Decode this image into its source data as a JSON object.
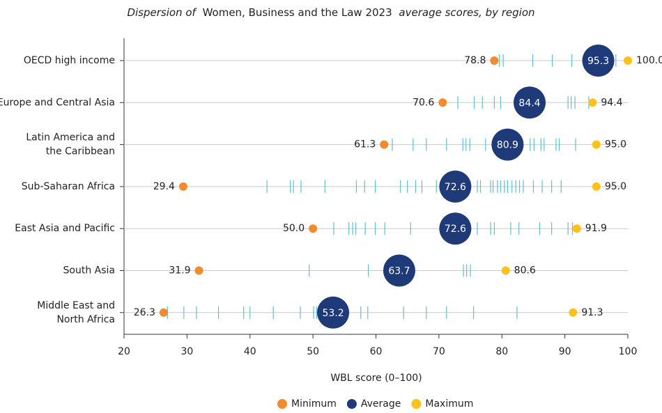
{
  "chart_data": {
    "type": "dot",
    "title": [
      "Dispersion of",
      "Women, Business and the Law 2023",
      "average scores, by region"
    ],
    "x_label": "WBL score (0–100)",
    "categories": [
      [
        "OECD high income"
      ],
      [
        "Europe and Central Asia"
      ],
      [
        "Latin America and",
        "the Caribbean"
      ],
      [
        "Sub-Saharan Africa"
      ],
      [
        "East Asia and Pacific"
      ],
      [
        "South Asia"
      ],
      [
        "Middle East and",
        "North Africa"
      ]
    ],
    "series": [
      {
        "name": "Minimum",
        "color": "#f28a2e",
        "values": [
          78.8,
          70.6,
          61.3,
          29.4,
          50.0,
          31.9,
          26.3
        ],
        "value_labels": [
          "78.8",
          "70.6",
          "61.3",
          "29.4",
          "50.0",
          "31.9",
          "26.3"
        ]
      },
      {
        "name": "Average",
        "color": "#1f3a78",
        "values": [
          95.3,
          84.4,
          80.9,
          72.6,
          72.6,
          63.7,
          53.2
        ],
        "value_labels": [
          "95.3",
          "84.4",
          "80.9",
          "72.6",
          "72.6",
          "63.7",
          "53.2"
        ]
      },
      {
        "name": "Maximum",
        "color": "#fbc21a",
        "values": [
          100.0,
          94.4,
          95.0,
          95.0,
          91.9,
          80.6,
          91.3
        ],
        "value_labels": [
          "100.0",
          "94.4",
          "95.0",
          "95.0",
          "91.9",
          "80.6",
          "91.3"
        ]
      }
    ],
    "scores_color": "#5fbfcc",
    "scores": [
      [
        79.6,
        80.2,
        84.9,
        88.0,
        91.1,
        93.8,
        94.4,
        95.0,
        96.9,
        97.5,
        98.1
      ],
      [
        73.0,
        75.6,
        76.9,
        78.8,
        79.8,
        82.5,
        90.5,
        91.0,
        91.6,
        93.8
      ],
      [
        62.6,
        65.9,
        68.0,
        71.2,
        73.8,
        74.3,
        74.9,
        77.4,
        84.5,
        85.1,
        86.2,
        86.7,
        88.6,
        89.1,
        91.7
      ],
      [
        42.7,
        46.4,
        46.9,
        48.1,
        51.9,
        56.9,
        58.2,
        59.9,
        63.9,
        65.0,
        66.3,
        67.3,
        69.6,
        76.1,
        76.6,
        78.2,
        78.6,
        79.3,
        79.8,
        80.4,
        80.9,
        81.6,
        82.2,
        82.8,
        83.4,
        85.0,
        86.4,
        87.9,
        89.4
      ],
      [
        53.3,
        55.7,
        56.3,
        56.8,
        58.3,
        59.9,
        61.4,
        65.5,
        76.1,
        78.2,
        78.8,
        81.4,
        82.7,
        86.0,
        87.9,
        90.5,
        91.2
      ],
      [
        49.4,
        58.8,
        73.9,
        74.4,
        75.0
      ],
      [
        26.9,
        29.5,
        31.5,
        35.0,
        39.0,
        40.0,
        43.7,
        48.0,
        50.1,
        50.6,
        57.6,
        58.7,
        64.4,
        68.0,
        71.2,
        75.5,
        82.4
      ]
    ],
    "xlim": [
      20,
      100
    ],
    "xticks": [
      20,
      30,
      40,
      50,
      60,
      70,
      80,
      90,
      100
    ],
    "grid": true,
    "legend": "bottom"
  }
}
